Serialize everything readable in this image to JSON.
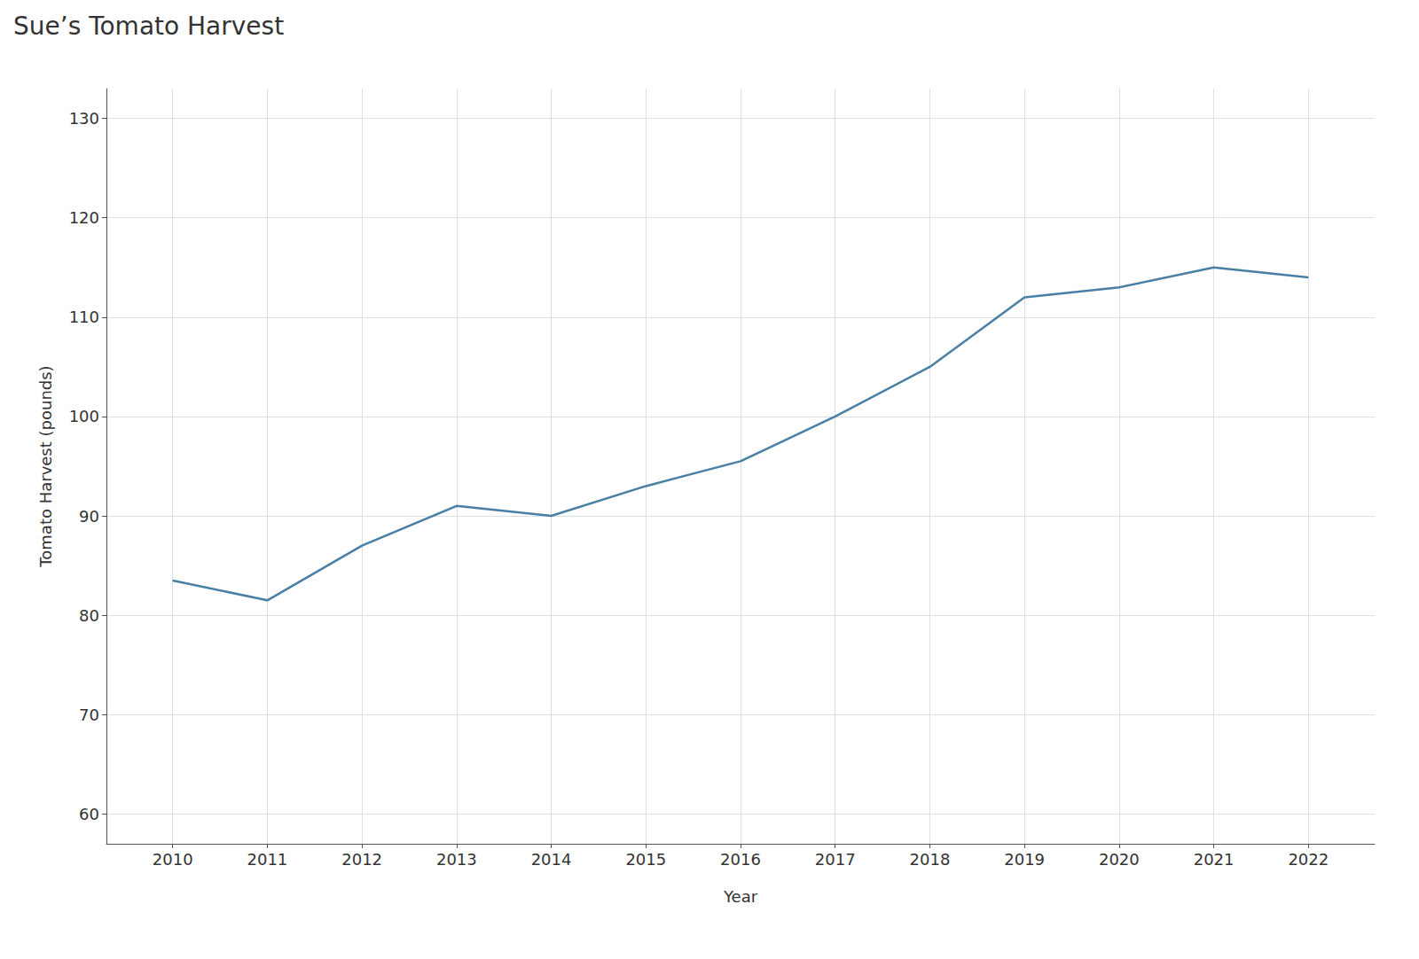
{
  "chart_data": {
    "type": "line",
    "title": "Sue’s Tomato Harvest",
    "xlabel": "Year",
    "ylabel": "Tomato Harvest (pounds)",
    "x": [
      2010,
      2011,
      2012,
      2013,
      2014,
      2015,
      2016,
      2017,
      2018,
      2019,
      2020,
      2021,
      2022
    ],
    "values": [
      83.5,
      81.5,
      87,
      91,
      90,
      93,
      95.5,
      100,
      105,
      112,
      113,
      115,
      114
    ],
    "color": "#4a7fa5",
    "xlim": [
      2009.3,
      2022.7
    ],
    "xticks": [
      2010,
      2011,
      2012,
      2013,
      2014,
      2015,
      2016,
      2017,
      2018,
      2019,
      2020,
      2021,
      2022
    ],
    "ylim": [
      57,
      133
    ],
    "yticks": [
      60,
      70,
      80,
      90,
      100,
      110,
      120,
      130
    ],
    "grid": true
  }
}
